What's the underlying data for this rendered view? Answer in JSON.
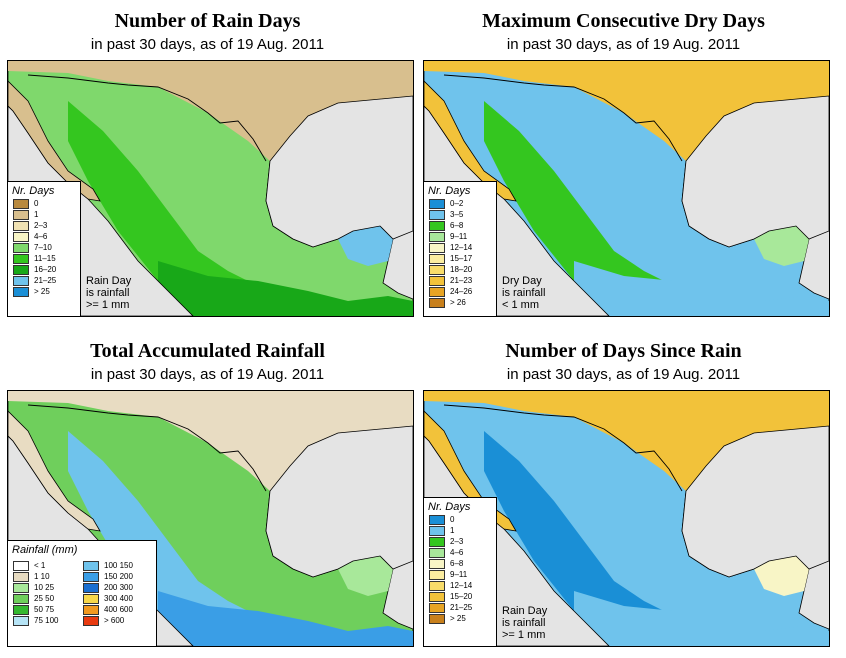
{
  "panels": [
    {
      "title": "Number of Rain Days",
      "subtitle": "in past 30 days, as of  19 Aug. 2011",
      "legend_title": "Nr. Days",
      "legend": [
        {
          "label": "0",
          "color": "#b8893e"
        },
        {
          "label": "1",
          "color": "#d8bf8e"
        },
        {
          "label": "2–3",
          "color": "#f0e2b4"
        },
        {
          "label": "4–6",
          "color": "#f8f5c6"
        },
        {
          "label": "7–10",
          "color": "#7fd86c"
        },
        {
          "label": "11–15",
          "color": "#34c61f"
        },
        {
          "label": "16–20",
          "color": "#18a818"
        },
        {
          "label": "21–25",
          "color": "#6fc3ec"
        },
        {
          "label": "> 25",
          "color": "#1a8fd6"
        }
      ],
      "note": [
        "Rain Day",
        "is rainfall",
        ">= 1 mm"
      ],
      "palette": {
        "north": "#d8bf8e",
        "plateau": "#7fd86c",
        "west": "#34c61f",
        "south": "#18a818",
        "sea": "#e4e4e4",
        "accent": "#6fc3ec"
      }
    },
    {
      "title": "Maximum Consecutive Dry Days",
      "subtitle": "in past 30 days, as of  19 Aug. 2011",
      "legend_title": "Nr. Days",
      "legend": [
        {
          "label": "0–2",
          "color": "#1a8fd6"
        },
        {
          "label": "3–5",
          "color": "#6fc3ec"
        },
        {
          "label": "6–8",
          "color": "#34c61f"
        },
        {
          "label": "9–11",
          "color": "#a8e89a"
        },
        {
          "label": "12–14",
          "color": "#f8f5c6"
        },
        {
          "label": "15–17",
          "color": "#fbeda0"
        },
        {
          "label": "18–20",
          "color": "#f8dc6a"
        },
        {
          "label": "21–23",
          "color": "#f2c23a"
        },
        {
          "label": "24–26",
          "color": "#e7a424"
        },
        {
          "label": "> 26",
          "color": "#c8801c"
        }
      ],
      "note": [
        "Dry Day",
        "is rainfall",
        "< 1 mm"
      ],
      "palette": {
        "north": "#f2c23a",
        "plateau": "#6fc3ec",
        "west": "#34c61f",
        "south": "#6fc3ec",
        "sea": "#e4e4e4",
        "accent": "#a8e89a"
      }
    },
    {
      "title": "Total Accumulated Rainfall",
      "subtitle": "in past 30 days, as of  19 Aug. 2011",
      "legend_title": "Rainfall (mm)",
      "legend_left": [
        {
          "label": "< 1",
          "color": "#ffffff"
        },
        {
          "label": "1    10",
          "color": "#e8dcc2"
        },
        {
          "label": "10    25",
          "color": "#a8e89a"
        },
        {
          "label": "25    50",
          "color": "#6fcf5c"
        },
        {
          "label": "50    75",
          "color": "#34b830"
        },
        {
          "label": "75    100",
          "color": "#b6e4f6"
        }
      ],
      "legend_right": [
        {
          "label": "100   150",
          "color": "#6fc3ec"
        },
        {
          "label": "150   200",
          "color": "#3a9ee6"
        },
        {
          "label": "200   300",
          "color": "#1a6fd0"
        },
        {
          "label": "300   400",
          "color": "#f8d84a"
        },
        {
          "label": "400   600",
          "color": "#f29a20"
        },
        {
          "label": "> 600",
          "color": "#e83a10"
        }
      ],
      "palette": {
        "north": "#e8dcc2",
        "plateau": "#6fcf5c",
        "west": "#6fc3ec",
        "south": "#3a9ee6",
        "sea": "#e4e4e4",
        "accent": "#a8e89a"
      }
    },
    {
      "title": "Number of Days Since Rain",
      "subtitle": "in past 30 days, as of  19 Aug. 2011",
      "legend_title": "Nr. Days",
      "legend": [
        {
          "label": "0",
          "color": "#1a8fd6"
        },
        {
          "label": "1",
          "color": "#6fc3ec"
        },
        {
          "label": "2–3",
          "color": "#34c61f"
        },
        {
          "label": "4–6",
          "color": "#a8e89a"
        },
        {
          "label": "6–8",
          "color": "#f8f5c6"
        },
        {
          "label": "9–11",
          "color": "#fbeda0"
        },
        {
          "label": "12–14",
          "color": "#f8dc6a"
        },
        {
          "label": "15–20",
          "color": "#f2c23a"
        },
        {
          "label": "21–25",
          "color": "#e7a424"
        },
        {
          "label": "> 25",
          "color": "#c8801c"
        }
      ],
      "note": [
        "Rain Day",
        "is rainfall",
        ">= 1 mm"
      ],
      "palette": {
        "north": "#f2c23a",
        "plateau": "#6fc3ec",
        "west": "#1a8fd6",
        "south": "#6fc3ec",
        "sea": "#e4e4e4",
        "accent": "#f8f5c6"
      }
    }
  ]
}
